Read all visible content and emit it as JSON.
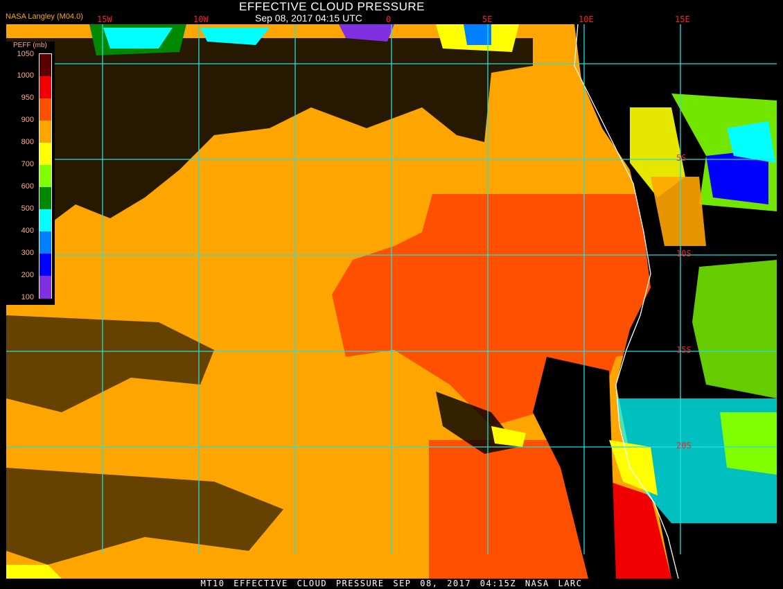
{
  "header": {
    "title": "EFFECTIVE CLOUD PRESSURE",
    "datetime": "Sep 08, 2017 04:15 UTC",
    "source": "NASA Langley (M04.0)"
  },
  "map": {
    "longitude_labels": [
      "15W",
      "10W",
      "0",
      "5E",
      "10E",
      "15E"
    ],
    "latitude_labels": [
      "5S",
      "10S",
      "15S",
      "20S"
    ],
    "gridline_color": "#20e0e0",
    "coastline_color": "#ffffff"
  },
  "legend": {
    "title": "PEFF (mb)",
    "ticks": [
      "1050",
      "1000",
      "950",
      "900",
      "800",
      "700",
      "600",
      "500",
      "400",
      "300",
      "200",
      "100"
    ],
    "colors": [
      "#5a0000",
      "#f00000",
      "#ff5000",
      "#ffa500",
      "#ffff00",
      "#80ff00",
      "#008800",
      "#00ffff",
      "#0080ff",
      "#0000ff",
      "#8030e0"
    ]
  },
  "footer": {
    "text": "MT10  EFFECTIVE CLOUD PRESSURE   SEP 08, 2017 04:15Z   NASA LARC"
  }
}
